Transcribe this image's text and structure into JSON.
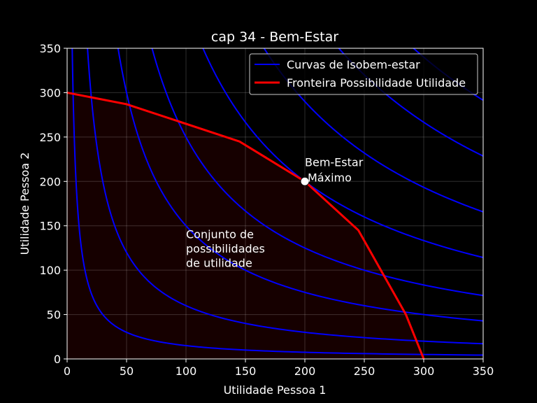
{
  "chart_data": {
    "type": "line",
    "title": "cap 34 - Bem-Estar",
    "xlabel": "Utilidade Pessoa 1",
    "ylabel": "Utilidade Pessoa 2",
    "xlim": [
      0,
      350
    ],
    "ylim": [
      0,
      350
    ],
    "xticks": [
      0,
      50,
      100,
      150,
      200,
      250,
      300,
      350
    ],
    "yticks": [
      0,
      50,
      100,
      150,
      200,
      250,
      300,
      350
    ],
    "grid": true,
    "legend_position": "top-right",
    "background_color": "#000000",
    "region_color": "#160000",
    "isowelfare_color": "#0000ff",
    "frontier_color": "#ff0000",
    "legend": {
      "isowelfare": "Curvas de Isobem-estar",
      "frontier": "Fronteira Possibilidade Utilidade"
    },
    "isowelfare_levels": [
      1500,
      6000,
      15000,
      25000,
      40000,
      58000,
      80000,
      102000
    ],
    "frontier": {
      "name": "Fronteira Possibilidade Utilidade",
      "x": [
        0,
        50,
        145,
        200,
        245,
        285,
        300
      ],
      "y": [
        300,
        287,
        245,
        200,
        145,
        50,
        0
      ]
    },
    "optimum": {
      "x": 200,
      "y": 200
    },
    "annotations": {
      "optimum_line1": "Bem-Estar",
      "optimum_line2": "Máximo",
      "region_line1": "Conjunto de",
      "region_line2": "possibilidades",
      "region_line3": "de utilidade"
    }
  }
}
